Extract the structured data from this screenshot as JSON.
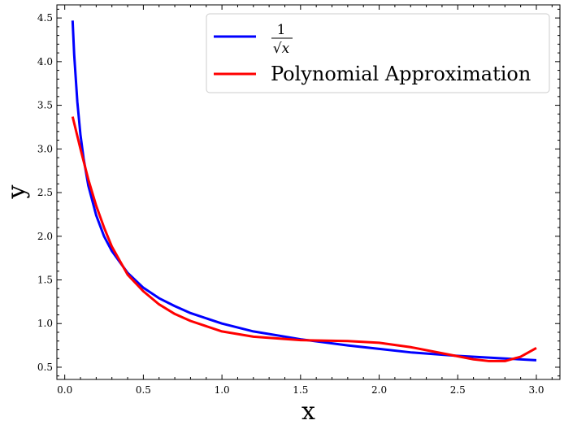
{
  "chart_data": {
    "type": "line",
    "xlabel": "x",
    "ylabel": "y",
    "xlim": [
      -0.05,
      3.15
    ],
    "ylim": [
      0.36,
      4.65
    ],
    "x_ticks": [
      0.0,
      0.5,
      1.0,
      1.5,
      2.0,
      2.5,
      3.0
    ],
    "x_tick_labels": [
      "0.0",
      "0.5",
      "1.0",
      "1.5",
      "2.0",
      "2.5",
      "3.0"
    ],
    "y_ticks": [
      0.5,
      1.0,
      1.5,
      2.0,
      2.5,
      3.0,
      3.5,
      4.0,
      4.5
    ],
    "y_tick_labels": [
      "0.5",
      "1.0",
      "1.5",
      "2.0",
      "2.5",
      "3.0",
      "3.5",
      "4.0",
      "4.5"
    ],
    "grid": false,
    "legend_position": "top-right",
    "series": [
      {
        "name": "1/√x",
        "legend_numerator": "1",
        "legend_denominator": "√x",
        "color": "#0000ff",
        "x": [
          0.05,
          0.06,
          0.08,
          0.1,
          0.12,
          0.15,
          0.2,
          0.25,
          0.3,
          0.4,
          0.5,
          0.6,
          0.7,
          0.8,
          1.0,
          1.2,
          1.5,
          1.8,
          2.0,
          2.2,
          2.5,
          2.8,
          3.0
        ],
        "y": [
          4.47,
          4.08,
          3.54,
          3.16,
          2.89,
          2.58,
          2.24,
          2.0,
          1.83,
          1.58,
          1.41,
          1.29,
          1.2,
          1.12,
          1.0,
          0.91,
          0.82,
          0.75,
          0.71,
          0.67,
          0.63,
          0.6,
          0.58
        ]
      },
      {
        "name": "Polynomial Approximation",
        "color": "#ff0000",
        "x": [
          0.05,
          0.1,
          0.15,
          0.2,
          0.25,
          0.3,
          0.4,
          0.5,
          0.6,
          0.7,
          0.8,
          1.0,
          1.2,
          1.5,
          1.8,
          2.0,
          2.2,
          2.4,
          2.6,
          2.7,
          2.8,
          2.9,
          3.0
        ],
        "y": [
          3.37,
          3.0,
          2.65,
          2.35,
          2.1,
          1.88,
          1.56,
          1.37,
          1.22,
          1.11,
          1.03,
          0.91,
          0.85,
          0.81,
          0.8,
          0.78,
          0.73,
          0.66,
          0.59,
          0.57,
          0.57,
          0.62,
          0.72
        ]
      }
    ]
  }
}
